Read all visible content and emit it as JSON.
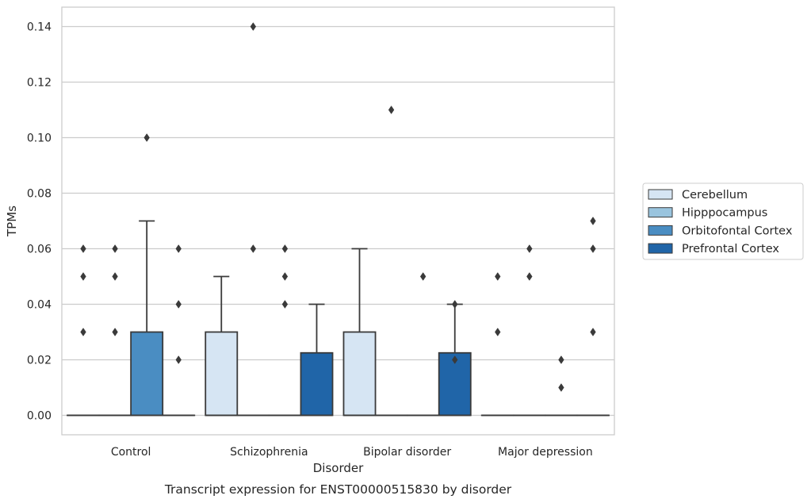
{
  "colors": {
    "series": [
      "#d6e5f3",
      "#99c4de",
      "#4a8dc2",
      "#2065a8"
    ],
    "edge": "#3a3a3a",
    "grid": "#cccccc",
    "frame": "#cccccc"
  },
  "chart_data": {
    "type": "box",
    "categories": [
      "Control",
      "Schizophrenia",
      "Bipolar disorder",
      "Major depression"
    ],
    "xlabel": "Disorder",
    "ylabel": "TPMs",
    "caption": "Transcript expression for ENST00000515830 by disorder",
    "ylim": [
      -0.007,
      0.147
    ],
    "yticks": [
      "0.00",
      "0.02",
      "0.04",
      "0.06",
      "0.08",
      "0.10",
      "0.12",
      "0.14"
    ],
    "grid": true,
    "legend_position": "right",
    "series": [
      {
        "name": "Cerebellum",
        "boxes": [
          {
            "q1": 0,
            "median": 0,
            "q3": 0,
            "whisker_low": 0,
            "whisker_high": 0,
            "outliers": [
              0.03,
              0.05,
              0.06
            ]
          },
          {
            "q1": 0,
            "median": 0,
            "q3": 0.03,
            "whisker_low": 0,
            "whisker_high": 0.05,
            "outliers": []
          },
          {
            "q1": 0,
            "median": 0,
            "q3": 0.03,
            "whisker_low": 0,
            "whisker_high": 0.06,
            "outliers": []
          },
          {
            "q1": 0,
            "median": 0,
            "q3": 0,
            "whisker_low": 0,
            "whisker_high": 0,
            "outliers": [
              0.03,
              0.05
            ]
          }
        ]
      },
      {
        "name": "Hipppocampus",
        "boxes": [
          {
            "q1": 0,
            "median": 0,
            "q3": 0,
            "whisker_low": 0,
            "whisker_high": 0,
            "outliers": [
              0.03,
              0.05,
              0.06
            ]
          },
          {
            "q1": 0,
            "median": 0,
            "q3": 0,
            "whisker_low": 0,
            "whisker_high": 0,
            "outliers": [
              0.06,
              0.14
            ]
          },
          {
            "q1": 0,
            "median": 0,
            "q3": 0,
            "whisker_low": 0,
            "whisker_high": 0,
            "outliers": [
              0.11
            ]
          },
          {
            "q1": 0,
            "median": 0,
            "q3": 0,
            "whisker_low": 0,
            "whisker_high": 0,
            "outliers": [
              0.05,
              0.06
            ]
          }
        ]
      },
      {
        "name": "Orbitofontal Cortex",
        "boxes": [
          {
            "q1": 0,
            "median": 0,
            "q3": 0.03,
            "whisker_low": 0,
            "whisker_high": 0.07,
            "outliers": [
              0.1
            ]
          },
          {
            "q1": 0,
            "median": 0,
            "q3": 0,
            "whisker_low": 0,
            "whisker_high": 0,
            "outliers": [
              0.04,
              0.05,
              0.06
            ]
          },
          {
            "q1": 0,
            "median": 0,
            "q3": 0,
            "whisker_low": 0,
            "whisker_high": 0,
            "outliers": [
              0.05
            ]
          },
          {
            "q1": 0,
            "median": 0,
            "q3": 0,
            "whisker_low": 0,
            "whisker_high": 0,
            "outliers": [
              0.01,
              0.02
            ]
          }
        ]
      },
      {
        "name": "Prefrontal Cortex",
        "boxes": [
          {
            "q1": 0,
            "median": 0,
            "q3": 0,
            "whisker_low": 0,
            "whisker_high": 0,
            "outliers": [
              0.02,
              0.04,
              0.06
            ]
          },
          {
            "q1": 0,
            "median": 0,
            "q3": 0.0225,
            "whisker_low": 0,
            "whisker_high": 0.04,
            "outliers": []
          },
          {
            "q1": 0,
            "median": 0,
            "q3": 0.0225,
            "whisker_low": 0,
            "whisker_high": 0.04,
            "outliers": [
              0.02,
              0.04
            ]
          },
          {
            "q1": 0,
            "median": 0,
            "q3": 0,
            "whisker_low": 0,
            "whisker_high": 0,
            "outliers": [
              0.03,
              0.06,
              0.07
            ]
          }
        ]
      }
    ]
  }
}
